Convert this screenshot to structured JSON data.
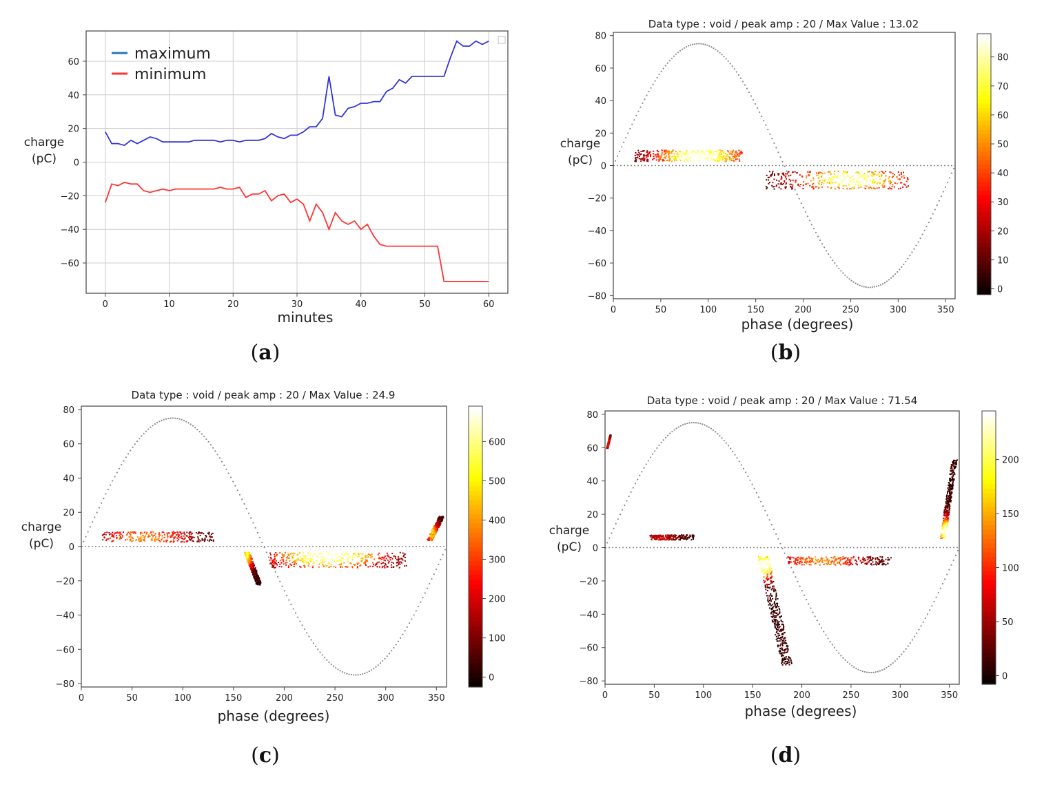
{
  "chart_data": [
    {
      "id": "a",
      "type": "line",
      "caption": "a",
      "title": "",
      "xlabel": "minutes",
      "ylabel": [
        "charge",
        "(pC)"
      ],
      "xlim": [
        -3,
        63
      ],
      "ylim": [
        -78,
        78
      ],
      "xticks": [
        0,
        10,
        20,
        30,
        40,
        50,
        60
      ],
      "yticks": [
        -60,
        -40,
        -20,
        0,
        20,
        40,
        60
      ],
      "grid": true,
      "legend_position": "top-left",
      "series": [
        {
          "name": "maximum",
          "color": "#3333dd",
          "legend_color": "#1f77b4",
          "x": [
            0,
            1,
            2,
            3,
            4,
            5,
            6,
            7,
            8,
            9,
            10,
            11,
            12,
            13,
            14,
            15,
            16,
            17,
            18,
            19,
            20,
            21,
            22,
            23,
            24,
            25,
            26,
            27,
            28,
            29,
            30,
            31,
            32,
            33,
            34,
            35,
            36,
            37,
            38,
            39,
            40,
            41,
            42,
            43,
            44,
            45,
            46,
            47,
            48,
            49,
            50,
            51,
            52,
            53,
            54,
            55,
            56,
            57,
            58,
            59,
            60
          ],
          "y": [
            18,
            11,
            11,
            10,
            13,
            11,
            13,
            15,
            14,
            12,
            12,
            12,
            12,
            12,
            13,
            13,
            13,
            13,
            12,
            13,
            13,
            12,
            13,
            13,
            13,
            14,
            17,
            15,
            14,
            16,
            16,
            18,
            21,
            21,
            26,
            51,
            28,
            27,
            32,
            33,
            35,
            35,
            36,
            36,
            42,
            44,
            49,
            47,
            51,
            51,
            51,
            51,
            51,
            51,
            62,
            72,
            69,
            69,
            72,
            70,
            72
          ]
        },
        {
          "name": "minimum",
          "color": "#ff3333",
          "legend_color": "#ff3333",
          "x": [
            0,
            1,
            2,
            3,
            4,
            5,
            6,
            7,
            8,
            9,
            10,
            11,
            12,
            13,
            14,
            15,
            16,
            17,
            18,
            19,
            20,
            21,
            22,
            23,
            24,
            25,
            26,
            27,
            28,
            29,
            30,
            31,
            32,
            33,
            34,
            35,
            36,
            37,
            38,
            39,
            40,
            41,
            42,
            43,
            44,
            45,
            46,
            47,
            48,
            49,
            50,
            51,
            52,
            53,
            54,
            55,
            56,
            57,
            58,
            59,
            60
          ],
          "y": [
            -24,
            -13,
            -14,
            -12,
            -13,
            -13,
            -17,
            -18,
            -17,
            -16,
            -17,
            -16,
            -16,
            -16,
            -16,
            -16,
            -16,
            -16,
            -15,
            -16,
            -16,
            -15,
            -21,
            -19,
            -19,
            -17,
            -23,
            -20,
            -19,
            -24,
            -22,
            -25,
            -35,
            -25,
            -30,
            -40,
            -30,
            -35,
            -37,
            -35,
            -40,
            -37,
            -44,
            -49,
            -50,
            -50,
            -50,
            -50,
            -50,
            -50,
            -50,
            -50,
            -50,
            -71,
            -71,
            -71,
            -71,
            -71,
            -71,
            -71,
            -71
          ]
        }
      ]
    },
    {
      "id": "b",
      "type": "heatmap",
      "caption": "b",
      "title": "Data type : void / peak amp : 20 / Max Value : 13.02",
      "xlabel": "phase (degrees)",
      "ylabel": [
        "charge",
        "(pC)"
      ],
      "xlim": [
        0,
        360
      ],
      "ylim": [
        -82,
        82
      ],
      "xticks": [
        0,
        50,
        100,
        150,
        200,
        250,
        300,
        350
      ],
      "yticks": [
        -80,
        -60,
        -40,
        -20,
        0,
        20,
        40,
        60,
        80
      ],
      "sine_amplitude": 75,
      "colorbar_ticks": [
        0,
        10,
        20,
        30,
        40,
        50,
        60,
        70,
        80
      ],
      "colorbar_range": [
        -2,
        88
      ],
      "clusters": [
        {
          "phase": [
            22,
            135
          ],
          "charge": [
            3,
            10
          ],
          "peak_phase": [
            85,
            95
          ],
          "peak_charge": 6,
          "intensity": 0.9
        },
        {
          "phase": [
            160,
            310
          ],
          "charge": [
            -14,
            -3
          ],
          "peak_phase": [
            240,
            260
          ],
          "peak_charge": -8,
          "intensity": 0.8
        }
      ]
    },
    {
      "id": "c",
      "type": "heatmap",
      "caption": "c",
      "title": "Data type : void / peak amp : 20 / Max Value : 24.9",
      "xlabel": "phase (degrees)",
      "ylabel": [
        "charge",
        "(pC)"
      ],
      "xlim": [
        0,
        360
      ],
      "ylim": [
        -82,
        82
      ],
      "xticks": [
        0,
        50,
        100,
        150,
        200,
        250,
        300,
        350
      ],
      "yticks": [
        -80,
        -60,
        -40,
        -20,
        0,
        20,
        40,
        60,
        80
      ],
      "sine_amplitude": 75,
      "colorbar_ticks": [
        0,
        100,
        200,
        300,
        400,
        500,
        600
      ],
      "colorbar_range": [
        -25,
        690
      ],
      "clusters": [
        {
          "phase": [
            20,
            130
          ],
          "charge": [
            3,
            9
          ],
          "peak_phase": [
            55,
            70
          ],
          "peak_charge": 5,
          "intensity": 0.5
        },
        {
          "phase": [
            160,
            175
          ],
          "charge": [
            -22,
            -3
          ],
          "peak_phase": [
            160,
            165
          ],
          "peak_charge": -5,
          "intensity": 0.7
        },
        {
          "phase": [
            185,
            320
          ],
          "charge": [
            -12,
            -3
          ],
          "peak_phase": [
            238,
            248
          ],
          "peak_charge": -5,
          "intensity": 0.85
        },
        {
          "phase": [
            340,
            355
          ],
          "charge": [
            4,
            18
          ],
          "peak_phase": [
            343,
            348
          ],
          "peak_charge": 8,
          "intensity": 0.6
        }
      ]
    },
    {
      "id": "d",
      "type": "heatmap",
      "caption": "d",
      "title": "Data type : void / peak amp : 20 / Max Value : 71.54",
      "xlabel": "phase (degrees)",
      "ylabel": [
        "charge",
        "(pC)"
      ],
      "xlim": [
        0,
        360
      ],
      "ylim": [
        -82,
        82
      ],
      "xticks": [
        0,
        50,
        100,
        150,
        200,
        250,
        300,
        350
      ],
      "yticks": [
        -80,
        -60,
        -40,
        -20,
        0,
        20,
        40,
        60,
        80
      ],
      "sine_amplitude": 75,
      "colorbar_ticks": [
        0,
        50,
        100,
        150,
        200
      ],
      "colorbar_range": [
        -8,
        245
      ],
      "clusters": [
        {
          "phase": [
            1,
            5
          ],
          "charge": [
            60,
            68
          ],
          "peak_phase": [
            2,
            3
          ],
          "peak_charge": 64,
          "intensity": 0.3
        },
        {
          "phase": [
            45,
            90
          ],
          "charge": [
            5,
            8
          ],
          "peak_phase": [
            50,
            60
          ],
          "peak_charge": 6,
          "intensity": 0.2
        },
        {
          "phase": [
            155,
            185
          ],
          "charge": [
            -70,
            -5
          ],
          "peak_phase": [
            157,
            165
          ],
          "peak_charge": -10,
          "intensity": 0.95
        },
        {
          "phase": [
            185,
            290
          ],
          "charge": [
            -10,
            -5
          ],
          "peak_phase": [
            215,
            225
          ],
          "peak_charge": -7,
          "intensity": 0.5
        },
        {
          "phase": [
            340,
            355
          ],
          "charge": [
            6,
            53
          ],
          "peak_phase": [
            343,
            348
          ],
          "peak_charge": 10,
          "intensity": 0.95
        }
      ]
    }
  ]
}
